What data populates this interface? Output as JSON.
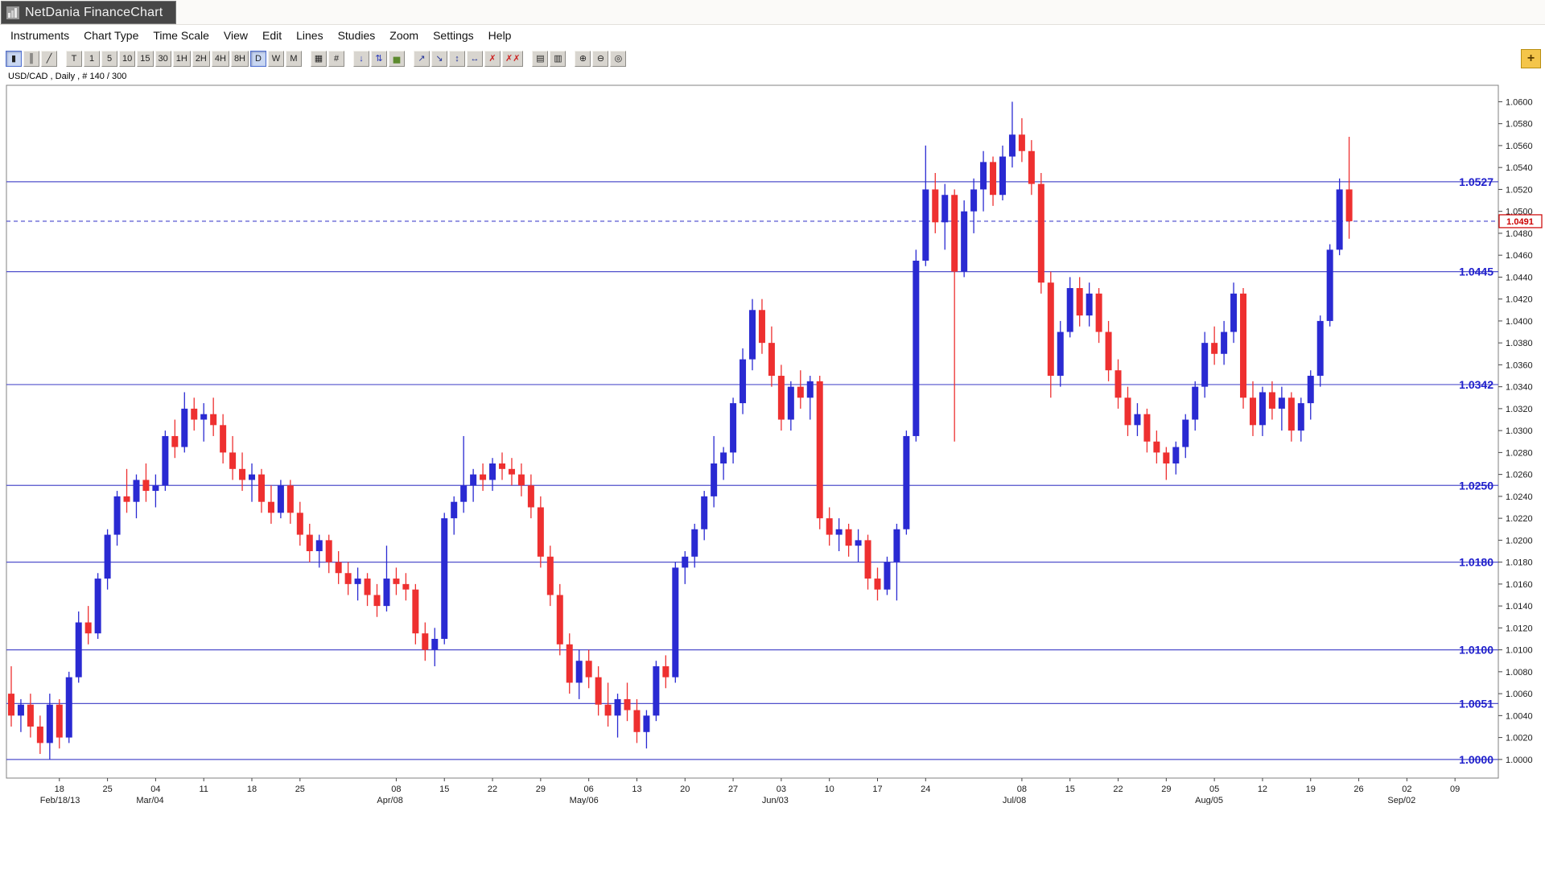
{
  "window": {
    "title": "NetDania FinanceChart"
  },
  "menu": {
    "items": [
      "Instruments",
      "Chart Type",
      "Time Scale",
      "View",
      "Edit",
      "Lines",
      "Studies",
      "Zoom",
      "Settings",
      "Help"
    ]
  },
  "toolbar": {
    "add_button": {
      "name": "add-chart-button",
      "glyph": "+"
    },
    "groups": [
      {
        "name": "chart-type-group",
        "buttons": [
          {
            "name": "candlestick-chart-button",
            "glyph": "▮",
            "active": true
          },
          {
            "name": "ohlc-bar-chart-button",
            "glyph": "║"
          },
          {
            "name": "line-chart-button",
            "glyph": "╱"
          }
        ]
      },
      {
        "name": "timescale-group",
        "buttons": [
          {
            "name": "timescale-tick-button",
            "label": "T"
          },
          {
            "name": "timescale-1m-button",
            "label": "1"
          },
          {
            "name": "timescale-5m-button",
            "label": "5"
          },
          {
            "name": "timescale-10m-button",
            "label": "10"
          },
          {
            "name": "timescale-15m-button",
            "label": "15"
          },
          {
            "name": "timescale-30m-button",
            "label": "30"
          },
          {
            "name": "timescale-1h-button",
            "label": "1H"
          },
          {
            "name": "timescale-2h-button",
            "label": "2H"
          },
          {
            "name": "timescale-4h-button",
            "label": "4H"
          },
          {
            "name": "timescale-8h-button",
            "label": "8H"
          },
          {
            "name": "timescale-daily-button",
            "label": "D",
            "active": true
          },
          {
            "name": "timescale-weekly-button",
            "label": "W"
          },
          {
            "name": "timescale-monthly-button",
            "label": "M"
          }
        ]
      },
      {
        "name": "grid-group",
        "buttons": [
          {
            "name": "grid-toggle-button",
            "glyph": "▦"
          },
          {
            "name": "hash-marks-button",
            "glyph": "#"
          }
        ]
      },
      {
        "name": "pointer-group",
        "buttons": [
          {
            "name": "price-arrow-button",
            "glyph": "↓",
            "fg": "#2233bb"
          },
          {
            "name": "auto-scale-button",
            "glyph": "⇅",
            "fg": "#2233bb"
          },
          {
            "name": "volume-study-button",
            "glyph": "▅",
            "fg": "#5c8a2e"
          }
        ]
      },
      {
        "name": "line-tools-group",
        "buttons": [
          {
            "name": "trend-line-up-button",
            "glyph": "↗",
            "fg": "#223399"
          },
          {
            "name": "trend-line-down-button",
            "glyph": "↘",
            "fg": "#223399"
          },
          {
            "name": "vertical-line-button",
            "glyph": "↕",
            "fg": "#223399"
          },
          {
            "name": "horizontal-line-button",
            "glyph": "↔",
            "fg": "#223399"
          },
          {
            "name": "delete-line-button",
            "glyph": "✗",
            "fg": "#cc2222"
          },
          {
            "name": "delete-all-lines-button",
            "glyph": "✗✗",
            "fg": "#cc2222"
          }
        ]
      },
      {
        "name": "print-group",
        "buttons": [
          {
            "name": "print-button",
            "glyph": "▤"
          },
          {
            "name": "print-preview-button",
            "glyph": "▥"
          }
        ]
      },
      {
        "name": "zoom-group",
        "buttons": [
          {
            "name": "zoom-in-button",
            "glyph": "⊕"
          },
          {
            "name": "zoom-out-button",
            "glyph": "⊖"
          },
          {
            "name": "zoom-reset-button",
            "glyph": "◎"
          }
        ]
      }
    ]
  },
  "chart": {
    "instrument_label": "USD/CAD , Daily , # 140 / 300",
    "current_price": {
      "value": 1.0491,
      "label": "1.0491"
    },
    "support_lines": [
      {
        "value": 1.0527,
        "label": "1.0527"
      },
      {
        "value": 1.0445,
        "label": "1.0445"
      },
      {
        "value": 1.0342,
        "label": "1.0342"
      },
      {
        "value": 1.025,
        "label": "1.0250"
      },
      {
        "value": 1.018,
        "label": "1.0180"
      },
      {
        "value": 1.01,
        "label": "1.0100"
      },
      {
        "value": 1.0051,
        "label": "1.0051"
      },
      {
        "value": 1.0,
        "label": "1.0000"
      }
    ]
  },
  "chart_data": {
    "type": "candlestick",
    "symbol": "USD/CAD",
    "timeframe": "Daily",
    "up_color": "#2a2ad2",
    "down_color": "#ee3030",
    "line_color": "#5050cc",
    "label_color": "#2020cc",
    "dashed_color": "#4444cc",
    "current_price_color": "#cc0000",
    "y_axis": {
      "min": 1.0,
      "max": 1.06,
      "step": 0.002,
      "decimals": 4
    },
    "x_axis": {
      "slots": 155,
      "labels": [
        {
          "slot": 5,
          "day": "18",
          "sub": "Feb/18/13"
        },
        {
          "slot": 10,
          "day": "25"
        },
        {
          "slot": 15,
          "day": "04",
          "sub": "Mar/04"
        },
        {
          "slot": 20,
          "day": "11"
        },
        {
          "slot": 25,
          "day": "18"
        },
        {
          "slot": 30,
          "day": "25"
        },
        {
          "slot": 40,
          "day": "08",
          "sub": "Apr/08"
        },
        {
          "slot": 45,
          "day": "15"
        },
        {
          "slot": 50,
          "day": "22"
        },
        {
          "slot": 55,
          "day": "29"
        },
        {
          "slot": 60,
          "day": "06",
          "sub": "May/06"
        },
        {
          "slot": 65,
          "day": "13"
        },
        {
          "slot": 70,
          "day": "20"
        },
        {
          "slot": 75,
          "day": "27"
        },
        {
          "slot": 80,
          "day": "03",
          "sub": "Jun/03"
        },
        {
          "slot": 85,
          "day": "10"
        },
        {
          "slot": 90,
          "day": "17"
        },
        {
          "slot": 95,
          "day": "24"
        },
        {
          "slot": 105,
          "day": "08",
          "sub": "Jul/08"
        },
        {
          "slot": 110,
          "day": "15"
        },
        {
          "slot": 115,
          "day": "22"
        },
        {
          "slot": 120,
          "day": "29"
        },
        {
          "slot": 125,
          "day": "05",
          "sub": "Aug/05"
        },
        {
          "slot": 130,
          "day": "12"
        },
        {
          "slot": 135,
          "day": "19"
        },
        {
          "slot": 140,
          "day": "26"
        },
        {
          "slot": 145,
          "day": "02",
          "sub": "Sep/02"
        },
        {
          "slot": 150,
          "day": "09"
        }
      ]
    },
    "candles": [
      [
        1.006,
        1.0085,
        1.003,
        1.004
      ],
      [
        1.004,
        1.0055,
        1.0025,
        1.005
      ],
      [
        1.005,
        1.006,
        1.002,
        1.003
      ],
      [
        1.003,
        1.004,
        1.0005,
        1.0015
      ],
      [
        1.0015,
        1.006,
        1.0,
        1.005
      ],
      [
        1.005,
        1.0055,
        1.001,
        1.002
      ],
      [
        1.002,
        1.008,
        1.0015,
        1.0075
      ],
      [
        1.0075,
        1.0135,
        1.007,
        1.0125
      ],
      [
        1.0125,
        1.014,
        1.0105,
        1.0115
      ],
      [
        1.0115,
        1.017,
        1.011,
        1.0165
      ],
      [
        1.0165,
        1.021,
        1.0155,
        1.0205
      ],
      [
        1.0205,
        1.0245,
        1.0195,
        1.024
      ],
      [
        1.024,
        1.0265,
        1.0225,
        1.0235
      ],
      [
        1.0235,
        1.026,
        1.022,
        1.0255
      ],
      [
        1.0255,
        1.027,
        1.0235,
        1.0245
      ],
      [
        1.0245,
        1.026,
        1.023,
        1.025
      ],
      [
        1.025,
        1.03,
        1.0245,
        1.0295
      ],
      [
        1.0295,
        1.031,
        1.0275,
        1.0285
      ],
      [
        1.0285,
        1.0335,
        1.028,
        1.032
      ],
      [
        1.032,
        1.033,
        1.03,
        1.031
      ],
      [
        1.031,
        1.0325,
        1.029,
        1.0315
      ],
      [
        1.0315,
        1.033,
        1.0295,
        1.0305
      ],
      [
        1.0305,
        1.0315,
        1.027,
        1.028
      ],
      [
        1.028,
        1.0295,
        1.0255,
        1.0265
      ],
      [
        1.0265,
        1.028,
        1.0245,
        1.0255
      ],
      [
        1.0255,
        1.027,
        1.0235,
        1.026
      ],
      [
        1.026,
        1.0265,
        1.0225,
        1.0235
      ],
      [
        1.0235,
        1.025,
        1.0215,
        1.0225
      ],
      [
        1.0225,
        1.0255,
        1.022,
        1.025
      ],
      [
        1.025,
        1.0255,
        1.0215,
        1.0225
      ],
      [
        1.0225,
        1.0235,
        1.0195,
        1.0205
      ],
      [
        1.0205,
        1.0215,
        1.018,
        1.019
      ],
      [
        1.019,
        1.0205,
        1.0175,
        1.02
      ],
      [
        1.02,
        1.0205,
        1.017,
        1.018
      ],
      [
        1.018,
        1.019,
        1.016,
        1.017
      ],
      [
        1.017,
        1.018,
        1.015,
        1.016
      ],
      [
        1.016,
        1.0175,
        1.0145,
        1.0165
      ],
      [
        1.0165,
        1.017,
        1.014,
        1.015
      ],
      [
        1.015,
        1.016,
        1.013,
        1.014
      ],
      [
        1.014,
        1.0195,
        1.0135,
        1.0165
      ],
      [
        1.0165,
        1.0175,
        1.015,
        1.016
      ],
      [
        1.016,
        1.017,
        1.0145,
        1.0155
      ],
      [
        1.0155,
        1.016,
        1.0105,
        1.0115
      ],
      [
        1.0115,
        1.0125,
        1.009,
        1.01
      ],
      [
        1.01,
        1.012,
        1.0085,
        1.011
      ],
      [
        1.011,
        1.0225,
        1.0105,
        1.022
      ],
      [
        1.022,
        1.024,
        1.0205,
        1.0235
      ],
      [
        1.0235,
        1.0295,
        1.0225,
        1.025
      ],
      [
        1.025,
        1.0265,
        1.0235,
        1.026
      ],
      [
        1.026,
        1.027,
        1.0245,
        1.0255
      ],
      [
        1.0255,
        1.0275,
        1.0245,
        1.027
      ],
      [
        1.027,
        1.028,
        1.0255,
        1.0265
      ],
      [
        1.0265,
        1.0275,
        1.025,
        1.026
      ],
      [
        1.026,
        1.027,
        1.024,
        1.025
      ],
      [
        1.025,
        1.026,
        1.022,
        1.023
      ],
      [
        1.023,
        1.024,
        1.0175,
        1.0185
      ],
      [
        1.0185,
        1.0195,
        1.014,
        1.015
      ],
      [
        1.015,
        1.016,
        1.0095,
        1.0105
      ],
      [
        1.0105,
        1.0115,
        1.006,
        1.007
      ],
      [
        1.007,
        1.01,
        1.0055,
        1.009
      ],
      [
        1.009,
        1.01,
        1.0065,
        1.0075
      ],
      [
        1.0075,
        1.0085,
        1.004,
        1.005
      ],
      [
        1.005,
        1.007,
        1.003,
        1.004
      ],
      [
        1.004,
        1.006,
        1.002,
        1.0055
      ],
      [
        1.0055,
        1.007,
        1.0035,
        1.0045
      ],
      [
        1.0045,
        1.0055,
        1.0015,
        1.0025
      ],
      [
        1.0025,
        1.0045,
        1.001,
        1.004
      ],
      [
        1.004,
        1.009,
        1.0035,
        1.0085
      ],
      [
        1.0085,
        1.0095,
        1.0065,
        1.0075
      ],
      [
        1.0075,
        1.018,
        1.007,
        1.0175
      ],
      [
        1.0175,
        1.019,
        1.016,
        1.0185
      ],
      [
        1.0185,
        1.0215,
        1.0175,
        1.021
      ],
      [
        1.021,
        1.0245,
        1.02,
        1.024
      ],
      [
        1.024,
        1.0295,
        1.023,
        1.027
      ],
      [
        1.027,
        1.0285,
        1.0255,
        1.028
      ],
      [
        1.028,
        1.033,
        1.027,
        1.0325
      ],
      [
        1.0325,
        1.0375,
        1.0315,
        1.0365
      ],
      [
        1.0365,
        1.042,
        1.0355,
        1.041
      ],
      [
        1.041,
        1.042,
        1.037,
        1.038
      ],
      [
        1.038,
        1.0395,
        1.034,
        1.035
      ],
      [
        1.035,
        1.036,
        1.03,
        1.031
      ],
      [
        1.031,
        1.0345,
        1.03,
        1.034
      ],
      [
        1.034,
        1.0355,
        1.032,
        1.033
      ],
      [
        1.033,
        1.035,
        1.031,
        1.0345
      ],
      [
        1.0345,
        1.035,
        1.021,
        1.022
      ],
      [
        1.022,
        1.023,
        1.0195,
        1.0205
      ],
      [
        1.0205,
        1.022,
        1.019,
        1.021
      ],
      [
        1.021,
        1.0215,
        1.0185,
        1.0195
      ],
      [
        1.0195,
        1.021,
        1.018,
        1.02
      ],
      [
        1.02,
        1.0205,
        1.0155,
        1.0165
      ],
      [
        1.0165,
        1.0175,
        1.0145,
        1.0155
      ],
      [
        1.0155,
        1.0185,
        1.015,
        1.018
      ],
      [
        1.018,
        1.0215,
        1.0145,
        1.021
      ],
      [
        1.021,
        1.03,
        1.0205,
        1.0295
      ],
      [
        1.0295,
        1.0465,
        1.029,
        1.0455
      ],
      [
        1.0455,
        1.056,
        1.045,
        1.052
      ],
      [
        1.052,
        1.0535,
        1.048,
        1.049
      ],
      [
        1.049,
        1.0525,
        1.0465,
        1.0515
      ],
      [
        1.0515,
        1.052,
        1.029,
        1.0445
      ],
      [
        1.0445,
        1.051,
        1.044,
        1.05
      ],
      [
        1.05,
        1.053,
        1.048,
        1.052
      ],
      [
        1.052,
        1.0555,
        1.05,
        1.0545
      ],
      [
        1.0545,
        1.055,
        1.0505,
        1.0515
      ],
      [
        1.0515,
        1.056,
        1.051,
        1.055
      ],
      [
        1.055,
        1.06,
        1.054,
        1.057
      ],
      [
        1.057,
        1.0585,
        1.0545,
        1.0555
      ],
      [
        1.0555,
        1.0565,
        1.0515,
        1.0525
      ],
      [
        1.0525,
        1.0535,
        1.0425,
        1.0435
      ],
      [
        1.0435,
        1.0445,
        1.033,
        1.035
      ],
      [
        1.035,
        1.04,
        1.034,
        1.039
      ],
      [
        1.039,
        1.044,
        1.0385,
        1.043
      ],
      [
        1.043,
        1.044,
        1.0395,
        1.0405
      ],
      [
        1.0405,
        1.0435,
        1.0395,
        1.0425
      ],
      [
        1.0425,
        1.043,
        1.038,
        1.039
      ],
      [
        1.039,
        1.04,
        1.0345,
        1.0355
      ],
      [
        1.0355,
        1.0365,
        1.032,
        1.033
      ],
      [
        1.033,
        1.034,
        1.0295,
        1.0305
      ],
      [
        1.0305,
        1.0325,
        1.0295,
        1.0315
      ],
      [
        1.0315,
        1.032,
        1.028,
        1.029
      ],
      [
        1.029,
        1.03,
        1.027,
        1.028
      ],
      [
        1.028,
        1.0285,
        1.0255,
        1.027
      ],
      [
        1.027,
        1.029,
        1.026,
        1.0285
      ],
      [
        1.0285,
        1.0315,
        1.0275,
        1.031
      ],
      [
        1.031,
        1.0345,
        1.03,
        1.034
      ],
      [
        1.034,
        1.039,
        1.033,
        1.038
      ],
      [
        1.038,
        1.0395,
        1.036,
        1.037
      ],
      [
        1.037,
        1.04,
        1.036,
        1.039
      ],
      [
        1.039,
        1.0435,
        1.038,
        1.0425
      ],
      [
        1.0425,
        1.043,
        1.032,
        1.033
      ],
      [
        1.033,
        1.0345,
        1.0295,
        1.0305
      ],
      [
        1.0305,
        1.034,
        1.0295,
        1.0335
      ],
      [
        1.0335,
        1.0345,
        1.031,
        1.032
      ],
      [
        1.032,
        1.034,
        1.03,
        1.033
      ],
      [
        1.033,
        1.0335,
        1.029,
        1.03
      ],
      [
        1.03,
        1.033,
        1.029,
        1.0325
      ],
      [
        1.0325,
        1.0355,
        1.031,
        1.035
      ],
      [
        1.035,
        1.0405,
        1.034,
        1.04
      ],
      [
        1.04,
        1.047,
        1.0395,
        1.0465
      ],
      [
        1.0465,
        1.053,
        1.046,
        1.052
      ],
      [
        1.052,
        1.0568,
        1.0475,
        1.0491
      ]
    ]
  }
}
